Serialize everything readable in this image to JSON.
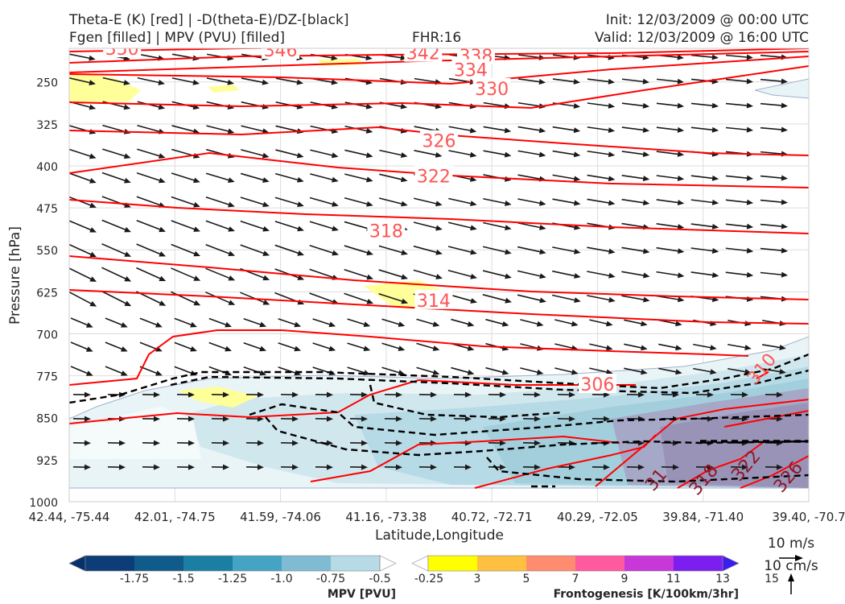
{
  "header": {
    "left_line1": "Theta-E (K) [red] | -D(theta-E)/DZ-[black]",
    "left_line2": "Fgen [filled] | MPV (PVU) [filled]",
    "center": "FHR:16",
    "right_line1": "Init: 12/03/2009 @ 00:00 UTC",
    "right_line2": "Valid: 12/03/2009 @ 16:00 UTC"
  },
  "chart_data": {
    "type": "cross-section",
    "xlabel": "Latitude,Longitude",
    "ylabel": "Pressure [hPa]",
    "x_ticks": [
      "42.44, -75.44",
      "42.01, -74.75",
      "41.59, -74.06",
      "41.16, -73.38",
      "40.72, -72.71",
      "40.29, -72.05",
      "39.84, -71.40",
      "39.40, -70.7"
    ],
    "y_ticks": [
      250,
      325,
      400,
      475,
      550,
      625,
      700,
      775,
      850,
      925,
      1000
    ],
    "ylim": [
      1000,
      190
    ],
    "y_reversed": true,
    "grid": true,
    "theta_e_contour_labels": [
      {
        "value": "350",
        "x": 0.5,
        "p": 190
      },
      {
        "value": "346",
        "x": 2.0,
        "p": 193
      },
      {
        "value": "342",
        "x": 3.35,
        "p": 198
      },
      {
        "value": "338",
        "x": 3.85,
        "p": 203
      },
      {
        "value": "334",
        "x": 3.8,
        "p": 228
      },
      {
        "value": "330",
        "x": 4.0,
        "p": 262
      },
      {
        "value": "326",
        "x": 3.5,
        "p": 355
      },
      {
        "value": "322",
        "x": 3.45,
        "p": 418
      },
      {
        "value": "318",
        "x": 3.0,
        "p": 516
      },
      {
        "value": "314",
        "x": 3.45,
        "p": 640
      },
      {
        "value": "306",
        "x": 5.0,
        "p": 790
      },
      {
        "value": "310",
        "x": 6.55,
        "p": 762
      },
      {
        "value": "31",
        "x": 5.55,
        "p": 960
      },
      {
        "value": "318",
        "x": 6.0,
        "p": 960
      },
      {
        "value": "322",
        "x": 6.4,
        "p": 935
      },
      {
        "value": "326",
        "x": 6.8,
        "p": 955
      }
    ],
    "mpv_colorbar": {
      "label": "MPV [PVU]",
      "ticks": [
        "-1.75",
        "-1.5",
        "-1.25",
        "-1.0",
        "-0.75",
        "-0.5",
        "-0.25"
      ],
      "colors": [
        "#08306b",
        "#0d3d78",
        "#115b8a",
        "#1b7ea3",
        "#45a3c4",
        "#7fbcd3",
        "#b7dbe6",
        "#ffffff"
      ]
    },
    "fgen_colorbar": {
      "label": "Frontogenesis [K/100km/3hr]",
      "ticks": [
        "3",
        "5",
        "7",
        "9",
        "11",
        "13",
        "15"
      ],
      "colors": [
        "#ffffff",
        "#ffff00",
        "#ffbf40",
        "#ff8c6e",
        "#ff5aa0",
        "#c838d8",
        "#7d1ef0",
        "#3a1ef0"
      ]
    },
    "vector_keys": {
      "horizontal": "10 m/s",
      "vertical": "10 cm/s"
    }
  }
}
